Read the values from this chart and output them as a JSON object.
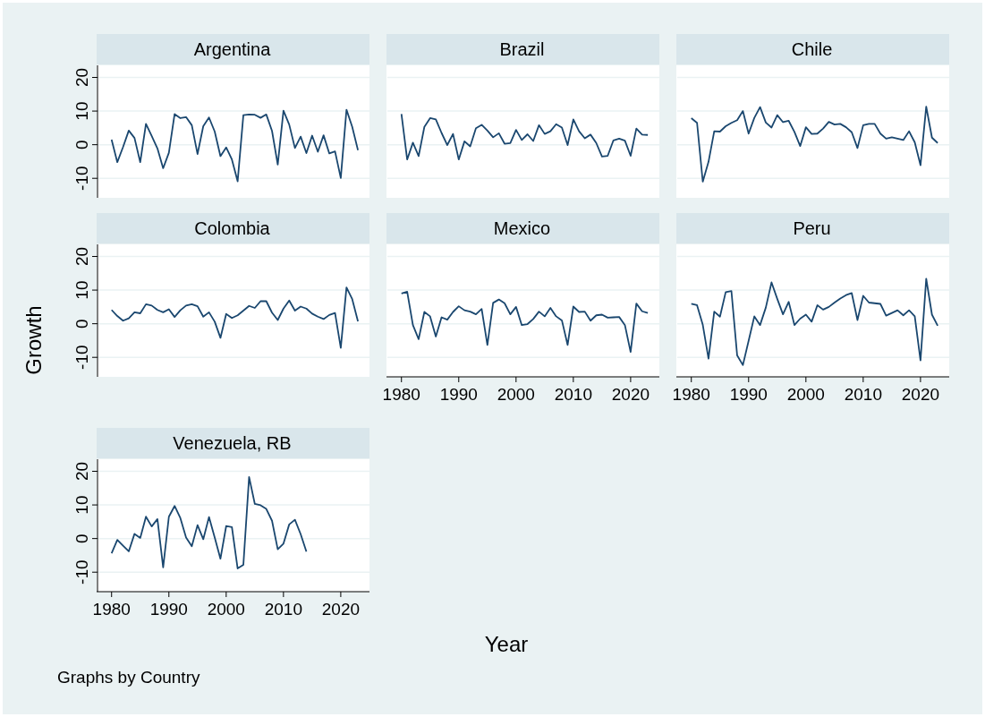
{
  "chart_data": [
    {
      "type": "line",
      "title": "Argentina",
      "x": [
        1980,
        1981,
        1982,
        1983,
        1984,
        1985,
        1986,
        1987,
        1988,
        1989,
        1990,
        1991,
        1992,
        1993,
        1994,
        1995,
        1996,
        1997,
        1998,
        1999,
        2000,
        2001,
        2002,
        2003,
        2004,
        2005,
        2006,
        2007,
        2008,
        2009,
        2010,
        2011,
        2012,
        2013,
        2014,
        2015,
        2016,
        2017,
        2018,
        2019,
        2020,
        2021,
        2022,
        2023
      ],
      "series": [
        {
          "color": "#1a476f",
          "values": [
            1.5,
            -5.2,
            -0.7,
            4.2,
            2.0,
            -5.2,
            6.2,
            2.6,
            -1.1,
            -7.0,
            -2.4,
            9.1,
            7.9,
            8.2,
            5.8,
            -2.8,
            5.5,
            8.1,
            3.9,
            -3.4,
            -0.8,
            -4.4,
            -10.9,
            8.8,
            9.0,
            8.9,
            8.0,
            9.0,
            4.1,
            -5.9,
            10.1,
            6.0,
            -1.0,
            2.4,
            -2.5,
            2.7,
            -2.1,
            2.8,
            -2.6,
            -2.0,
            -9.9,
            10.4,
            5.3,
            -1.6
          ]
        }
      ],
      "xlim": [
        1977.7,
        2024.7
      ],
      "ylim": [
        -15.8,
        23.6
      ],
      "yticks": [
        -10,
        0,
        10,
        20
      ],
      "grid": "y",
      "tick_labels": "y"
    },
    {
      "type": "line",
      "title": "Brazil",
      "x": [
        1980,
        1981,
        1982,
        1983,
        1984,
        1985,
        1986,
        1987,
        1988,
        1989,
        1990,
        1991,
        1992,
        1993,
        1994,
        1995,
        1996,
        1997,
        1998,
        1999,
        2000,
        2001,
        2002,
        2003,
        2004,
        2005,
        2006,
        2007,
        2008,
        2009,
        2010,
        2011,
        2012,
        2013,
        2014,
        2015,
        2016,
        2017,
        2018,
        2019,
        2020,
        2021,
        2022,
        2023
      ],
      "series": [
        {
          "color": "#1a476f",
          "values": [
            9.1,
            -4.4,
            0.6,
            -3.4,
            5.3,
            7.9,
            7.5,
            3.5,
            -0.1,
            3.2,
            -4.4,
            1.0,
            -0.5,
            4.9,
            5.9,
            4.2,
            2.2,
            3.4,
            0.3,
            0.5,
            4.4,
            1.4,
            3.1,
            1.1,
            5.8,
            3.2,
            4.0,
            6.1,
            5.1,
            -0.1,
            7.5,
            4.0,
            1.9,
            3.0,
            0.5,
            -3.5,
            -3.3,
            1.3,
            1.8,
            1.2,
            -3.3,
            4.8,
            3.0,
            2.9
          ]
        }
      ],
      "xlim": [
        1977.7,
        2024.7
      ],
      "ylim": [
        -15.8,
        23.6
      ],
      "yticks": [
        -10,
        0,
        10,
        20
      ],
      "grid": "y",
      "tick_labels": false
    },
    {
      "type": "line",
      "title": "Chile",
      "x": [
        1980,
        1981,
        1982,
        1983,
        1984,
        1985,
        1986,
        1987,
        1988,
        1989,
        1990,
        1991,
        1992,
        1993,
        1994,
        1995,
        1996,
        1997,
        1998,
        1999,
        2000,
        2001,
        2002,
        2003,
        2004,
        2005,
        2006,
        2007,
        2008,
        2009,
        2010,
        2011,
        2012,
        2013,
        2014,
        2015,
        2016,
        2017,
        2018,
        2019,
        2020,
        2021,
        2022,
        2023
      ],
      "series": [
        {
          "color": "#1a476f",
          "values": [
            7.9,
            6.5,
            -11.0,
            -5.1,
            4.0,
            3.9,
            5.5,
            6.5,
            7.3,
            10.0,
            3.3,
            8.0,
            11.2,
            6.6,
            5.1,
            8.8,
            6.7,
            7.1,
            3.8,
            -0.4,
            5.2,
            3.2,
            3.3,
            4.8,
            6.8,
            6.0,
            6.2,
            5.2,
            3.7,
            -1.0,
            5.8,
            6.2,
            6.2,
            3.3,
            1.8,
            2.2,
            1.8,
            1.4,
            4.0,
            0.7,
            -6.1,
            11.3,
            2.1,
            0.5
          ]
        }
      ],
      "xlim": [
        1977.7,
        2024.7
      ],
      "ylim": [
        -15.8,
        23.6
      ],
      "yticks": [
        -10,
        0,
        10,
        20
      ],
      "grid": "y",
      "tick_labels": false
    },
    {
      "type": "line",
      "title": "Colombia",
      "ylabel": "Growth",
      "x": [
        1980,
        1981,
        1982,
        1983,
        1984,
        1985,
        1986,
        1987,
        1988,
        1989,
        1990,
        1991,
        1992,
        1993,
        1994,
        1995,
        1996,
        1997,
        1998,
        1999,
        2000,
        2001,
        2002,
        2003,
        2004,
        2005,
        2006,
        2007,
        2008,
        2009,
        2010,
        2011,
        2012,
        2013,
        2014,
        2015,
        2016,
        2017,
        2018,
        2019,
        2020,
        2021,
        2022,
        2023
      ],
      "series": [
        {
          "color": "#1a476f",
          "values": [
            4.1,
            2.3,
            0.9,
            1.6,
            3.4,
            3.1,
            5.8,
            5.4,
            4.1,
            3.4,
            4.3,
            2.0,
            4.0,
            5.4,
            5.8,
            5.2,
            2.1,
            3.4,
            0.6,
            -4.2,
            2.9,
            1.7,
            2.5,
            3.9,
            5.3,
            4.7,
            6.7,
            6.7,
            3.3,
            1.1,
            4.5,
            6.9,
            3.9,
            5.1,
            4.5,
            3.0,
            2.1,
            1.4,
            2.6,
            3.2,
            -7.2,
            10.8,
            7.3,
            0.7
          ]
        }
      ],
      "xlim": [
        1977.7,
        2024.7
      ],
      "ylim": [
        -15.8,
        23.6
      ],
      "yticks": [
        -10,
        0,
        10,
        20
      ],
      "grid": "y",
      "tick_labels": "y"
    },
    {
      "type": "line",
      "title": "Mexico",
      "xlabel": "Year",
      "x": [
        1980,
        1981,
        1982,
        1983,
        1984,
        1985,
        1986,
        1987,
        1988,
        1989,
        1990,
        1991,
        1992,
        1993,
        1994,
        1995,
        1996,
        1997,
        1998,
        1999,
        2000,
        2001,
        2002,
        2003,
        2004,
        2005,
        2006,
        2007,
        2008,
        2009,
        2010,
        2011,
        2012,
        2013,
        2014,
        2015,
        2016,
        2017,
        2018,
        2019,
        2020,
        2021,
        2022,
        2023
      ],
      "series": [
        {
          "color": "#1a476f",
          "values": [
            9.0,
            9.5,
            -0.4,
            -4.6,
            3.5,
            2.2,
            -3.8,
            1.9,
            1.2,
            3.5,
            5.2,
            4.0,
            3.6,
            2.8,
            4.4,
            -6.3,
            6.2,
            7.2,
            6.1,
            2.8,
            5.0,
            -0.4,
            -0.1,
            1.4,
            3.6,
            2.2,
            4.7,
            2.2,
            1.0,
            -6.3,
            5.1,
            3.5,
            3.6,
            0.9,
            2.5,
            2.7,
            1.8,
            1.9,
            2.0,
            -0.4,
            -8.4,
            6.0,
            3.7,
            3.2
          ]
        }
      ],
      "xlim": [
        1977.7,
        2024.7
      ],
      "ylim": [
        -15.8,
        23.6
      ],
      "xticks": [
        1980,
        1990,
        2000,
        2010,
        2020
      ],
      "yticks": [
        -10,
        0,
        10,
        20
      ],
      "grid": "y",
      "tick_labels": "x"
    },
    {
      "type": "line",
      "title": "Peru",
      "x": [
        1980,
        1981,
        1982,
        1983,
        1984,
        1985,
        1986,
        1987,
        1988,
        1989,
        1990,
        1991,
        1992,
        1993,
        1994,
        1995,
        1996,
        1997,
        1998,
        1999,
        2000,
        2001,
        2002,
        2003,
        2004,
        2005,
        2006,
        2007,
        2008,
        2009,
        2010,
        2011,
        2012,
        2013,
        2014,
        2015,
        2016,
        2017,
        2018,
        2019,
        2020,
        2021,
        2022,
        2023
      ],
      "series": [
        {
          "color": "#1a476f",
          "values": [
            5.9,
            5.5,
            -0.3,
            -10.4,
            3.6,
            2.1,
            9.4,
            9.7,
            -9.4,
            -12.3,
            -5.1,
            2.2,
            -0.4,
            4.8,
            12.3,
            7.4,
            2.8,
            6.5,
            -0.4,
            1.5,
            2.7,
            0.6,
            5.5,
            4.2,
            5.0,
            6.3,
            7.5,
            8.5,
            9.1,
            1.1,
            8.3,
            6.3,
            6.1,
            5.9,
            2.4,
            3.2,
            4.0,
            2.5,
            4.0,
            2.2,
            -10.9,
            13.4,
            2.7,
            -0.6
          ]
        }
      ],
      "xlim": [
        1977.7,
        2024.7
      ],
      "ylim": [
        -15.8,
        23.6
      ],
      "xticks": [
        1980,
        1990,
        2000,
        2010,
        2020
      ],
      "yticks": [
        -10,
        0,
        10,
        20
      ],
      "grid": "y",
      "tick_labels": "x"
    },
    {
      "type": "line",
      "title": "Venezuela, RB",
      "annotations": [
        "Graphs by Country"
      ],
      "x": [
        1980,
        1981,
        1982,
        1983,
        1984,
        1985,
        1986,
        1987,
        1988,
        1989,
        1990,
        1991,
        1992,
        1993,
        1994,
        1995,
        1996,
        1997,
        1998,
        1999,
        2000,
        2001,
        2002,
        2003,
        2004,
        2005,
        2006,
        2007,
        2008,
        2009,
        2010,
        2011,
        2012,
        2013,
        2014
      ],
      "series": [
        {
          "color": "#1a476f",
          "values": [
            -4.4,
            -0.4,
            -2.1,
            -3.8,
            1.4,
            0.2,
            6.5,
            3.6,
            5.8,
            -8.6,
            6.5,
            9.7,
            6.1,
            0.3,
            -2.3,
            4.0,
            -0.2,
            6.4,
            0.3,
            -6.0,
            3.7,
            3.4,
            -8.9,
            -7.8,
            18.3,
            10.3,
            9.9,
            8.8,
            5.3,
            -3.2,
            -1.5,
            4.2,
            5.6,
            1.3,
            -3.9
          ]
        }
      ],
      "xlim": [
        1977.7,
        2024.7
      ],
      "ylim": [
        -15.8,
        23.6
      ],
      "xticks": [
        1980,
        1990,
        2000,
        2010,
        2020
      ],
      "yticks": [
        -10,
        0,
        10,
        20
      ],
      "grid": "y"
    }
  ]
}
